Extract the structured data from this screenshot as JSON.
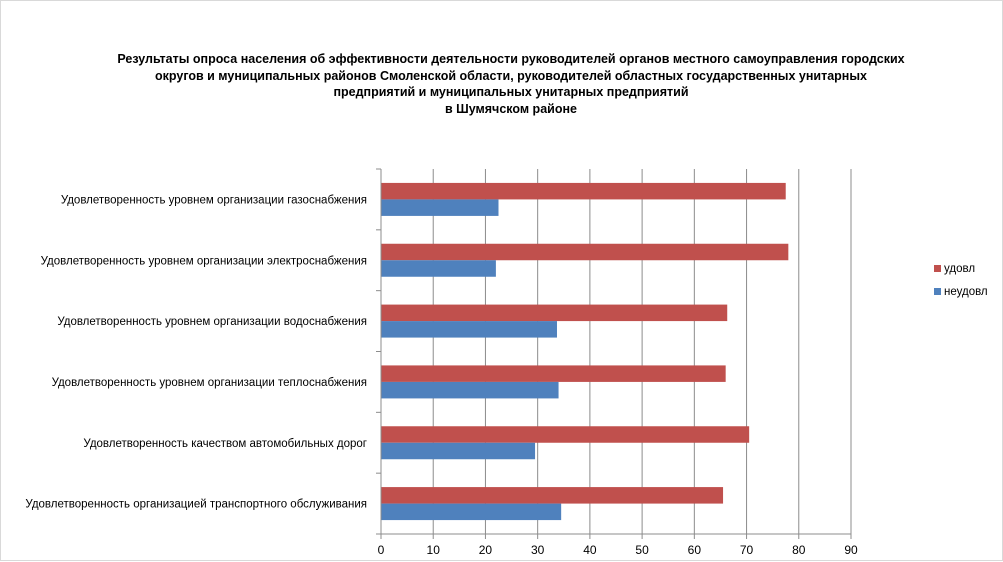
{
  "chart_data": {
    "type": "bar",
    "orientation": "horizontal",
    "title_lines": [
      "Результаты опроса населения об эффективности деятельности руководителей органов местного самоуправления городских",
      "округов и муниципальных районов Смоленской области, руководителей областных государственных унитарных",
      "предприятий и муниципальных унитарных предприятий",
      "в Шумячском районе"
    ],
    "categories": [
      "Удовлетворенность  уровнем  организации газоснабжения",
      "Удовлетворенность  уровнем организации электроснабжения",
      "Удовлетворенность  уровнем  организации водоснабжения",
      "Удовлетворенность  уровнем  организации теплоснабжения",
      "Удовлетворенность  качеством  автомобильных дорог",
      "Удовлетворенность  организацией транспортного обслуживания"
    ],
    "series": [
      {
        "name": "удовл",
        "color": "#c0504d",
        "values": [
          77.5,
          78,
          66.3,
          66,
          70.5,
          65.5
        ]
      },
      {
        "name": "неудовл",
        "color": "#4f81bd",
        "values": [
          22.5,
          22,
          33.7,
          34,
          29.5,
          34.5
        ]
      }
    ],
    "xlim": [
      0,
      90
    ],
    "xticks": [
      0,
      10,
      20,
      30,
      40,
      50,
      60,
      70,
      80,
      90
    ],
    "grid": true,
    "legend_position": "right"
  }
}
